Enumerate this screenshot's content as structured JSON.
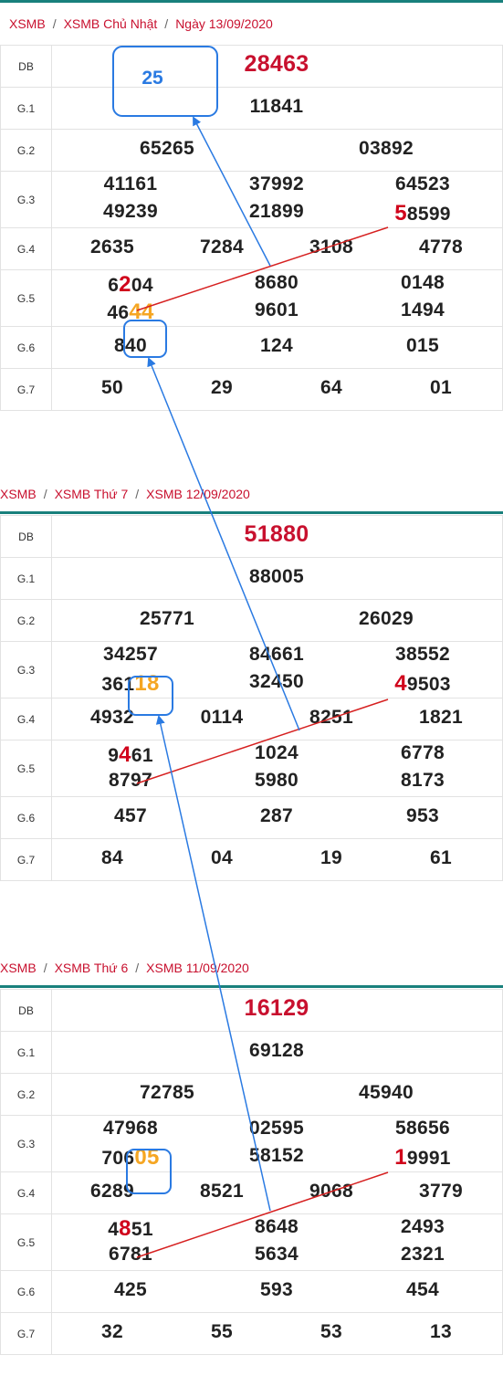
{
  "labels": {
    "db": "DB",
    "g1": "G.1",
    "g2": "G.2",
    "g3": "G.3",
    "g4": "G.4",
    "g5": "G.5",
    "g6": "G.6",
    "g7": "G.7"
  },
  "blocks": [
    {
      "crumb": [
        "XSMB",
        "XSMB Chủ Nhật",
        "Ngày 13/09/2020"
      ],
      "db": "28463",
      "g1": "11841",
      "g2": [
        "65265",
        "03892"
      ],
      "g3a": [
        "41161",
        "37992",
        "64523"
      ],
      "g3b": [
        {
          "text": "49239"
        },
        {
          "text": "21899"
        },
        {
          "hl": "5",
          "rest": "8599"
        }
      ],
      "g4": [
        "2635",
        "7284",
        "3108",
        "4778"
      ],
      "g5a": [
        {
          "pre": "6",
          "hl": "2",
          "rest": "04"
        },
        {
          "text": "8680"
        },
        {
          "text": "0148"
        }
      ],
      "g5b": [
        {
          "pre": "46",
          "ohl": "44"
        },
        {
          "text": "9601"
        },
        {
          "text": "1494"
        }
      ],
      "g6": [
        "840",
        "124",
        "015"
      ],
      "g7": [
        "50",
        "29",
        "64",
        "01"
      ]
    },
    {
      "crumb": [
        "XSMB",
        "XSMB Thứ 7",
        "XSMB 12/09/2020"
      ],
      "db": "51880",
      "g1": "88005",
      "g2": [
        "25771",
        "26029"
      ],
      "g3a": [
        "34257",
        "84661",
        "38552"
      ],
      "g3b": [
        {
          "pre": "361",
          "ohl": "18"
        },
        {
          "text": "32450"
        },
        {
          "hl": "4",
          "rest": "9503"
        }
      ],
      "g4": [
        "4932",
        "0114",
        "8251",
        "1821"
      ],
      "g5a": [
        {
          "pre": "9",
          "hl": "4",
          "rest": "61"
        },
        {
          "text": "1024"
        },
        {
          "text": "6778"
        }
      ],
      "g5b": [
        {
          "text": "8797"
        },
        {
          "text": "5980"
        },
        {
          "text": "8173"
        }
      ],
      "g6": [
        "457",
        "287",
        "953"
      ],
      "g7": [
        "84",
        "04",
        "19",
        "61"
      ]
    },
    {
      "crumb": [
        "XSMB",
        "XSMB Thứ 6",
        "XSMB 11/09/2020"
      ],
      "db": "16129",
      "g1": "69128",
      "g2": [
        "72785",
        "45940"
      ],
      "g3a": [
        "47968",
        "02595",
        "58656"
      ],
      "g3b": [
        {
          "pre": "706",
          "ohl": "05"
        },
        {
          "text": "58152"
        },
        {
          "hl": "1",
          "rest": "9991"
        }
      ],
      "g4": [
        "6289",
        "8521",
        "9068",
        "3779"
      ],
      "g5a": [
        {
          "pre": "4",
          "hl": "8",
          "rest": "51"
        },
        {
          "text": "8648"
        },
        {
          "text": "2493"
        }
      ],
      "g5b": [
        {
          "text": "6781"
        },
        {
          "text": "5634"
        },
        {
          "text": "2321"
        }
      ],
      "g6": [
        "425",
        "593",
        "454"
      ],
      "g7": [
        "32",
        "55",
        "53",
        "13"
      ]
    }
  ],
  "prediction": "25",
  "colors": {
    "accent": "#c8102e",
    "teal": "#19807c",
    "orange": "#f5a623",
    "blue": "#2a7ae2",
    "red_line": "#d62020"
  }
}
